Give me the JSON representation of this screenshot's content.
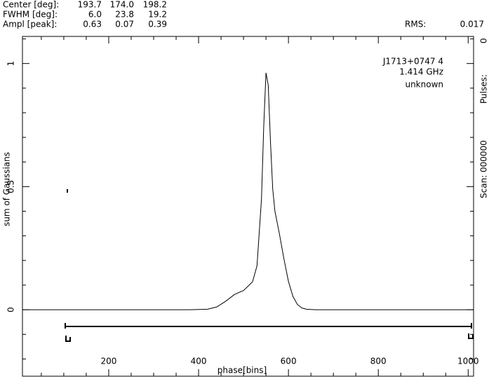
{
  "header": {
    "rows": [
      [
        "Center [deg]:",
        "193.7",
        "174.0",
        "198.2"
      ],
      [
        "FWHM  [deg]:",
        "6.0",
        "23.8",
        "19.2"
      ],
      [
        "Ampl  [peak]:",
        "0.63",
        "0.07",
        "0.39"
      ]
    ],
    "rms_label": "RMS:",
    "rms": "0.017"
  },
  "info": [
    "J1713+0747 4",
    "1.414 GHz",
    "unknown"
  ],
  "side": [
    "Scan: 000000",
    "Pulses:",
    "0"
  ],
  "chart_data": {
    "type": "line",
    "xlabel": "phase[bins]",
    "ylabel": "sum of Gaussians",
    "color": "#000000",
    "x": [
      8,
      380,
      420,
      440,
      460,
      480,
      500,
      520,
      530,
      540,
      545,
      550,
      555,
      560,
      565,
      570,
      580,
      590,
      600,
      610,
      620,
      630,
      640,
      660,
      1012
    ],
    "values": [
      0,
      0,
      0.002,
      0.011,
      0.034,
      0.062,
      0.078,
      0.113,
      0.178,
      0.45,
      0.744,
      0.962,
      0.912,
      0.682,
      0.49,
      0.399,
      0.307,
      0.206,
      0.115,
      0.054,
      0.021,
      0.007,
      0.002,
      0,
      0
    ],
    "xlim": [
      8,
      1012
    ],
    "ylim": [
      -0.27,
      1.11
    ],
    "xticks": [
      200,
      400,
      600,
      800,
      1000
    ],
    "yticks": [
      0,
      0.5,
      1
    ],
    "xminorticks": [
      50,
      100,
      150,
      250,
      300,
      350,
      450,
      500,
      550,
      650,
      700,
      750,
      850,
      900,
      950
    ],
    "yminorticks": [
      -0.2,
      -0.1,
      0.1,
      0.2,
      0.3,
      0.4,
      0.6,
      0.7,
      0.8,
      0.9,
      1.1
    ]
  }
}
